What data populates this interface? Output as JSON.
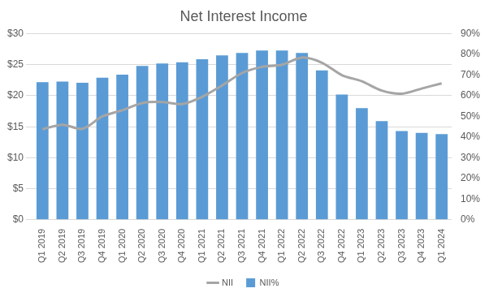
{
  "chart_data": {
    "type": "bar",
    "title": "Net Interest Income",
    "categories": [
      "Q1 2019",
      "Q2 2019",
      "Q3 2019",
      "Q4 2019",
      "Q1 2020",
      "Q2 2020",
      "Q3 2020",
      "Q4 2020",
      "Q1 2021",
      "Q2 2021",
      "Q3 2021",
      "Q4 2021",
      "Q1 2022",
      "Q2 2022",
      "Q3 2022",
      "Q4 2022",
      "Q1 2023",
      "Q2 2023",
      "Q3 2023",
      "Q4 2023",
      "Q1 2024"
    ],
    "series": [
      {
        "name": "NII%",
        "type": "bar",
        "color": "#5b9bd5",
        "values": [
          22.2,
          22.3,
          22.1,
          22.9,
          23.4,
          24.8,
          25.2,
          25.4,
          25.9,
          26.5,
          26.9,
          27.3,
          27.3,
          26.9,
          24.1,
          20.2,
          18.0,
          15.9,
          14.3,
          14.0,
          13.8
        ]
      },
      {
        "name": "NII",
        "type": "line",
        "color": "#a5a5a5",
        "axis": "y2",
        "values": [
          43.8,
          46,
          44,
          50,
          53,
          56.5,
          57,
          56,
          59.5,
          65,
          71,
          74,
          75,
          78.5,
          76,
          70,
          67,
          62.5,
          61,
          63.5,
          66
        ]
      }
    ],
    "ylim": [
      0,
      30
    ],
    "yticks": [
      {
        "value": 0,
        "label": "$0"
      },
      {
        "value": 5,
        "label": "$5"
      },
      {
        "value": 10,
        "label": "$10"
      },
      {
        "value": 15,
        "label": "$15"
      },
      {
        "value": 20,
        "label": "$20"
      },
      {
        "value": 25,
        "label": "$25"
      },
      {
        "value": 30,
        "label": "$30"
      }
    ],
    "y2lim": [
      0,
      90
    ],
    "y2ticks": [
      {
        "value": 0,
        "label": "0%"
      },
      {
        "value": 10,
        "label": "10%"
      },
      {
        "value": 20,
        "label": "20%"
      },
      {
        "value": 30,
        "label": "30%"
      },
      {
        "value": 40,
        "label": "40%"
      },
      {
        "value": 50,
        "label": "50%"
      },
      {
        "value": 60,
        "label": "60%"
      },
      {
        "value": 70,
        "label": "70%"
      },
      {
        "value": 80,
        "label": "80%"
      },
      {
        "value": 90,
        "label": "90%"
      }
    ],
    "grid": true,
    "legend": "bottom"
  }
}
